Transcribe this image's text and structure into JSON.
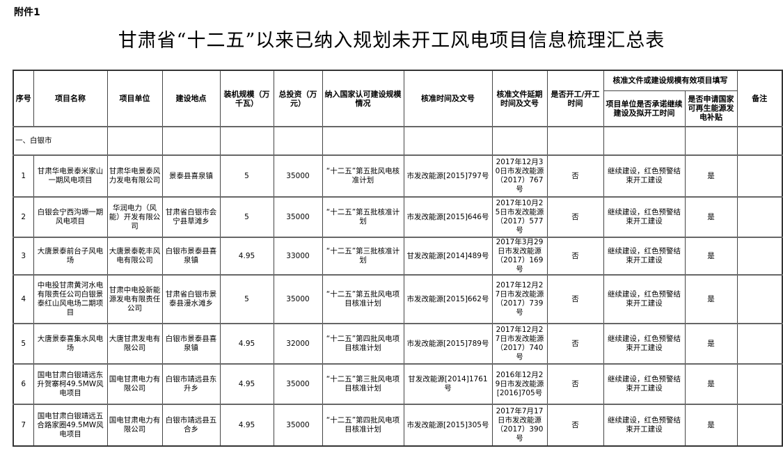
{
  "attachment_label": "附件1",
  "title": "甘肃省“十二五”以来已纳入规划未开工风电项目信息梳理汇总表",
  "headers": {
    "seq": "序号",
    "name": "项目名称",
    "unit": "项目单位",
    "location": "建设地点",
    "capacity": "装机规模（万千瓦）",
    "investment": "总投资（万元）",
    "scale": "纳入国家认可建设规模情况",
    "approval": "核准时间及文号",
    "extension": "核准文件延期时间及文号",
    "started": "是否开工/开工时间",
    "group": "核准文件或建设规模有效项目填写",
    "commit": "项目单位是否承诺继续建设及拟开工时间",
    "subsidy": "是否申请国家可再生能源发电补贴",
    "remark": "备注"
  },
  "section": "一、白银市",
  "rows": [
    {
      "seq": "1",
      "name": "甘肃华电景泰米家山一期风电项目",
      "unit": "甘肃华电景泰风力发电有限公司",
      "location": "景泰县喜泉镇",
      "capacity": "5",
      "investment": "35000",
      "scale": "“十二五”第五批风电核准计划",
      "approval": "市发改能源[2015]797号",
      "extension": "2017年12月30日市发改能源（2017）767号",
      "started": "否",
      "commit": "继续建设，红色预警结束开工建设",
      "subsidy": "是",
      "remark": ""
    },
    {
      "seq": "2",
      "name": "白银会宁西沟塬一期风电项目",
      "unit": "华润电力（风能）开发有限公司",
      "location": "甘肃省白银市会宁县草滩乡",
      "capacity": "5",
      "investment": "35000",
      "scale": "“十二五”第五批核准计划",
      "approval": "市发改能源[2015]646号",
      "extension": "2017年10月25日市发改能源（2017）577号",
      "started": "否",
      "commit": "继续建设，红色预警结束开工建设",
      "subsidy": "是",
      "remark": ""
    },
    {
      "seq": "3",
      "name": "大唐景泰前台子风电场",
      "unit": "大唐景泰乾丰风电有限公司",
      "location": "白银市景泰县喜泉镇",
      "capacity": "4.95",
      "investment": "33000",
      "scale": "“十二五”第三批核准计划",
      "approval": "甘发改能源[2014]489号",
      "extension": "2017年3月29日市发改能源（2017）169号",
      "started": "否",
      "commit": "继续建设，红色预警结束开工建设",
      "subsidy": "是",
      "remark": ""
    },
    {
      "seq": "4",
      "name": "中电投甘肃黄河水电有限责任公司白银景泰红山风电场二期项目",
      "unit": "甘肃中电投新能源发电有限责任公司",
      "location": "甘肃省白银市景泰县漫水滩乡",
      "capacity": "5",
      "investment": "35000",
      "scale": "“十二五”第五批风电项目核准计划",
      "approval": "市发改能源[2015]662号",
      "extension": "2017年12月27日市发改能源（2017）739号",
      "started": "否",
      "commit": "继续建设，红色预警结束开工建设",
      "subsidy": "是",
      "remark": ""
    },
    {
      "seq": "5",
      "name": "大唐景泰喜集水风电场",
      "unit": "大唐甘肃发电有限公司",
      "location": "白银市景泰县喜泉镇",
      "capacity": "4.95",
      "investment": "32000",
      "scale": "“十二五”第四批风电项目核准计划",
      "approval": "市发改能源[2015]789号",
      "extension": "2017年12月27日市发改能源（2017）740号",
      "started": "否",
      "commit": "继续建设，红色预警结束开工建设",
      "subsidy": "是",
      "remark": ""
    },
    {
      "seq": "6",
      "name": "国电甘肃白银靖远东升贺寨柯49.5MW风电项目",
      "unit": "国电甘肃电力有限公司",
      "location": "白银市靖远县东升乡",
      "capacity": "4.95",
      "investment": "35000",
      "scale": "“十二五”第三批风电项目核准计划",
      "approval": "甘发改能源[2014]1761号",
      "extension": "2016年12月29日市发改能源[2016]705号",
      "started": "否",
      "commit": "继续建设，红色预警结束开工建设",
      "subsidy": "是",
      "remark": ""
    },
    {
      "seq": "7",
      "name": "国电甘肃白银靖远五合路家圈49.5MW风电项目",
      "unit": "国电甘肃电力有限公司",
      "location": "白银市靖远县五合乡",
      "capacity": "4.95",
      "investment": "35000",
      "scale": "“十二五”第四批风电项目核准计划",
      "approval": "市发改能源[2015]305号",
      "extension": "2017年7月17日市发改能源（2017）390号",
      "started": "否",
      "commit": "继续建设，红色预警结束开工建设",
      "subsidy": "是",
      "remark": ""
    }
  ]
}
